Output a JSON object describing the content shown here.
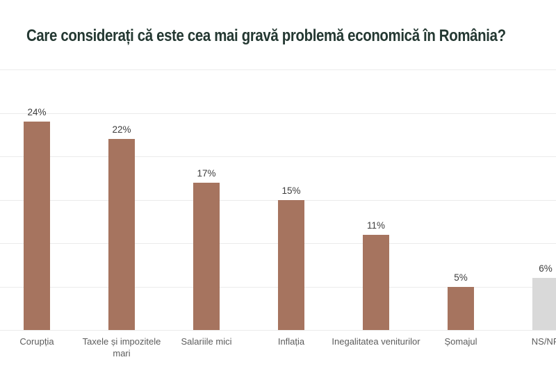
{
  "title": "Care considerați că este cea mai gravă problemă economică în România?",
  "chart_data": {
    "type": "bar",
    "title": "Care considerați că este cea mai gravă problemă economică în România?",
    "categories": [
      "Corupția",
      "Taxele și impozitele mari",
      "Salariile mici",
      "Inflația",
      "Inegalitatea veniturilor",
      "Șomajul",
      "NS/NR"
    ],
    "values": [
      24,
      22,
      17,
      15,
      11,
      5,
      6
    ],
    "value_labels": [
      "24%",
      "22%",
      "17%",
      "15%",
      "11%",
      "5%",
      "6%"
    ],
    "bar_colors": [
      "#a6745f",
      "#a6745f",
      "#a6745f",
      "#a6745f",
      "#a6745f",
      "#a6745f",
      "#d9d9d9"
    ],
    "xlabel": "",
    "ylabel": "",
    "ylim": [
      0,
      30
    ],
    "gridline_step": 5,
    "grid": true,
    "legend": false,
    "colors": {
      "title": "#243832",
      "bar_primary": "#a6745f",
      "bar_muted": "#d9d9d9",
      "grid": "#ebebeb",
      "value_label": "#3d3d3d",
      "category_label": "#5c5c5c",
      "background": "#ffffff"
    }
  }
}
